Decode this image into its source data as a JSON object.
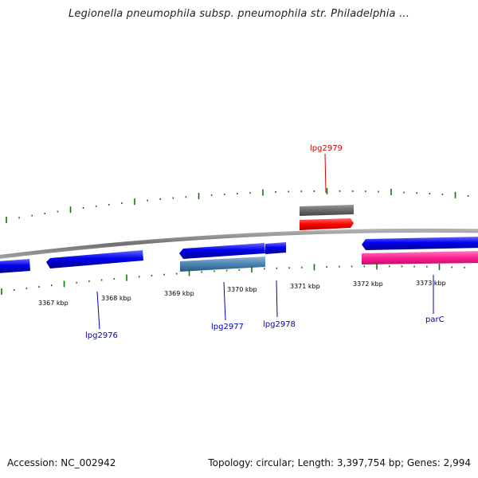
{
  "title": "Legionella pneumophila subsp. pneumophila str. Philadelphia ...",
  "footer": {
    "accession": "Accession: NC_002942",
    "summary": "Topology: circular; Length: 3,397,754 bp; Genes: 2,994"
  },
  "scale_ticks": [
    "3367 kbp",
    "3368 kbp",
    "3369 kbp",
    "3370 kbp",
    "3371 kbp",
    "3372 kbp",
    "3373 kbp"
  ],
  "gene_labels": [
    {
      "id": "lpg2979",
      "text": "lpg2979",
      "color": "#d00000"
    },
    {
      "id": "lpg2976",
      "text": "lpg2976",
      "color": "#0000bb"
    },
    {
      "id": "lpg2977",
      "text": "lpg2977",
      "color": "#0000bb"
    },
    {
      "id": "lpg2978",
      "text": "lpg2978",
      "color": "#0000bb"
    },
    {
      "id": "parC",
      "text": "parC",
      "color": "#0000bb"
    }
  ],
  "colors": {
    "backbone": "#8a8a8a",
    "tick_green": "#0a7a0a",
    "cds_forward": "#0000ee",
    "cds_reverse": "#1a1aff",
    "lpg2977_bar": "#4a82b0",
    "lpg2979_gray": "#6a6a6a",
    "lpg2979_red": "#ff0000",
    "parC_pink": "#ff2090"
  }
}
